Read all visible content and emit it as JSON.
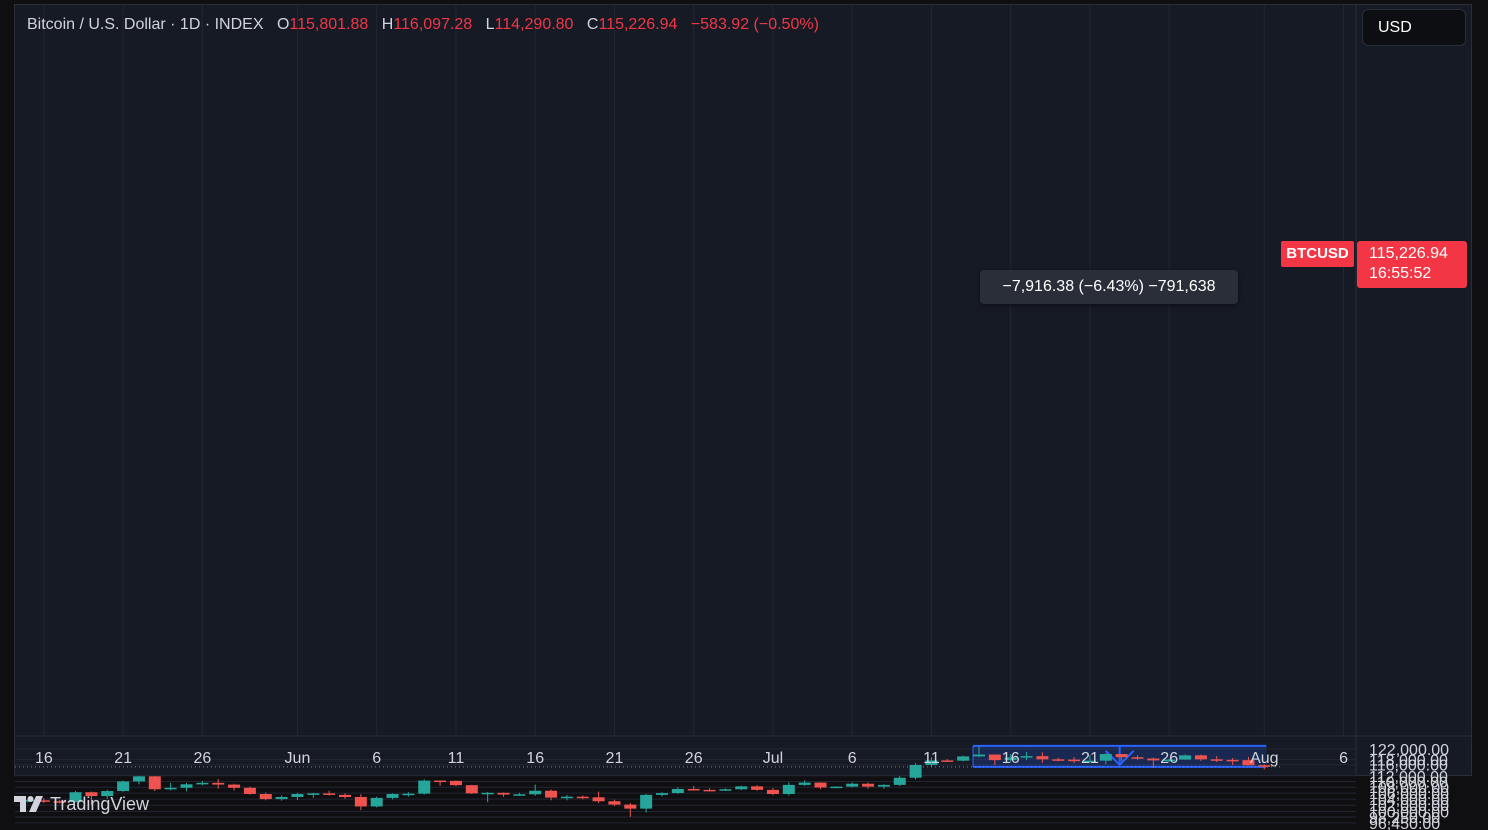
{
  "header": {
    "symbol": "Bitcoin / U.S. Dollar · 1D · INDEX",
    "open_label": "O",
    "open": "115,801.88",
    "high_label": "H",
    "high": "116,097.28",
    "low_label": "L",
    "low": "114,290.80",
    "close_label": "C",
    "close": "115,226.94",
    "change": "−583.92 (−0.50%)"
  },
  "currency_button": "USD",
  "price_tag": {
    "symbol": "BTCUSD",
    "price": "115,226.94",
    "countdown": "16:55:52"
  },
  "measure_tooltip": "−7,916.38 (−6.43%) −791,638",
  "brand": "TradingView",
  "colors": {
    "up": "#26a69a",
    "down": "#ef5350",
    "measure": "#2962ff",
    "background": "#161a25"
  },
  "chart_data": {
    "type": "candlestick",
    "title": "Bitcoin / U.S. Dollar · 1D · INDEX",
    "y_axis": {
      "log_scale": true,
      "ticks": [
        96450,
        98250,
        100000,
        102000,
        104000,
        106000,
        108000,
        110000,
        112000,
        116000,
        118000,
        122000
      ],
      "tick_labels": [
        "96,450.00",
        "98,250.00",
        "100,000.00",
        "102,000.00",
        "104,000.00",
        "106,000.00",
        "108,000.00",
        "110,000.00",
        "112,000.00",
        "116,000.00",
        "118,000.00",
        "122,000.00"
      ]
    },
    "x_axis": {
      "first_date": "2025-05-15",
      "tick_labels": [
        {
          "date": "2025-05-16",
          "label": "16"
        },
        {
          "date": "2025-05-21",
          "label": "21"
        },
        {
          "date": "2025-05-26",
          "label": "26"
        },
        {
          "date": "2025-06-01",
          "label": "Jun"
        },
        {
          "date": "2025-06-06",
          "label": "6"
        },
        {
          "date": "2025-06-11",
          "label": "11"
        },
        {
          "date": "2025-06-16",
          "label": "16"
        },
        {
          "date": "2025-06-21",
          "label": "21"
        },
        {
          "date": "2025-06-26",
          "label": "26"
        },
        {
          "date": "2025-07-01",
          "label": "Jul"
        },
        {
          "date": "2025-07-06",
          "label": "6"
        },
        {
          "date": "2025-07-11",
          "label": "11"
        },
        {
          "date": "2025-07-16",
          "label": "16"
        },
        {
          "date": "2025-07-21",
          "label": "21"
        },
        {
          "date": "2025-07-26",
          "label": "26"
        },
        {
          "date": "2025-08-01",
          "label": "Aug"
        },
        {
          "date": "2025-08-06",
          "label": "6"
        }
      ]
    },
    "candles": [
      {
        "date": "2025-05-15",
        "o": 103500,
        "h": 104100,
        "l": 102900,
        "c": 103700
      },
      {
        "date": "2025-05-16",
        "o": 103600,
        "h": 104300,
        "l": 102700,
        "c": 103300
      },
      {
        "date": "2025-05-17",
        "o": 103300,
        "h": 103700,
        "l": 102600,
        "c": 102900
      },
      {
        "date": "2025-05-18",
        "o": 103000,
        "h": 106700,
        "l": 102900,
        "c": 106300
      },
      {
        "date": "2025-05-19",
        "o": 106300,
        "h": 106500,
        "l": 102100,
        "c": 105000
      },
      {
        "date": "2025-05-20",
        "o": 105000,
        "h": 107100,
        "l": 104100,
        "c": 106700
      },
      {
        "date": "2025-05-21",
        "o": 106700,
        "h": 110300,
        "l": 106400,
        "c": 110000
      },
      {
        "date": "2025-05-22",
        "o": 110000,
        "h": 112000,
        "l": 109000,
        "c": 111800
      },
      {
        "date": "2025-05-23",
        "o": 111800,
        "h": 111900,
        "l": 106700,
        "c": 107300
      },
      {
        "date": "2025-05-24",
        "o": 107300,
        "h": 109500,
        "l": 106900,
        "c": 107800
      },
      {
        "date": "2025-05-25",
        "o": 107800,
        "h": 109500,
        "l": 106600,
        "c": 109000
      },
      {
        "date": "2025-05-26",
        "o": 109000,
        "h": 110200,
        "l": 108600,
        "c": 109500
      },
      {
        "date": "2025-05-27",
        "o": 109500,
        "h": 110800,
        "l": 107500,
        "c": 108900
      },
      {
        "date": "2025-05-28",
        "o": 108900,
        "h": 109200,
        "l": 106900,
        "c": 107800
      },
      {
        "date": "2025-05-29",
        "o": 107800,
        "h": 108200,
        "l": 105500,
        "c": 105700
      },
      {
        "date": "2025-05-30",
        "o": 105700,
        "h": 106200,
        "l": 103600,
        "c": 104000
      },
      {
        "date": "2025-05-31",
        "o": 104000,
        "h": 105200,
        "l": 103500,
        "c": 104700
      },
      {
        "date": "2025-06-01",
        "o": 104700,
        "h": 106100,
        "l": 103700,
        "c": 105700
      },
      {
        "date": "2025-06-02",
        "o": 105700,
        "h": 106100,
        "l": 104400,
        "c": 105900
      },
      {
        "date": "2025-06-03",
        "o": 105900,
        "h": 106800,
        "l": 105200,
        "c": 105400
      },
      {
        "date": "2025-06-04",
        "o": 105400,
        "h": 105900,
        "l": 104100,
        "c": 104700
      },
      {
        "date": "2025-06-05",
        "o": 104700,
        "h": 105600,
        "l": 100400,
        "c": 101600
      },
      {
        "date": "2025-06-06",
        "o": 101600,
        "h": 104800,
        "l": 101300,
        "c": 104400
      },
      {
        "date": "2025-06-07",
        "o": 104400,
        "h": 105900,
        "l": 103900,
        "c": 105700
      },
      {
        "date": "2025-06-08",
        "o": 105700,
        "h": 106300,
        "l": 104800,
        "c": 105800
      },
      {
        "date": "2025-06-09",
        "o": 105800,
        "h": 110700,
        "l": 105500,
        "c": 110300
      },
      {
        "date": "2025-06-10",
        "o": 110300,
        "h": 110300,
        "l": 108500,
        "c": 110200
      },
      {
        "date": "2025-06-11",
        "o": 110200,
        "h": 110400,
        "l": 108400,
        "c": 108700
      },
      {
        "date": "2025-06-12",
        "o": 108700,
        "h": 108800,
        "l": 105700,
        "c": 105900
      },
      {
        "date": "2025-06-13",
        "o": 105900,
        "h": 106400,
        "l": 103000,
        "c": 106100
      },
      {
        "date": "2025-06-14",
        "o": 106100,
        "h": 106200,
        "l": 104800,
        "c": 105500
      },
      {
        "date": "2025-06-15",
        "o": 105500,
        "h": 106100,
        "l": 105100,
        "c": 105600
      },
      {
        "date": "2025-06-16",
        "o": 105600,
        "h": 108900,
        "l": 105100,
        "c": 106800
      },
      {
        "date": "2025-06-17",
        "o": 106800,
        "h": 107200,
        "l": 103600,
        "c": 104500
      },
      {
        "date": "2025-06-18",
        "o": 104500,
        "h": 105400,
        "l": 103600,
        "c": 104800
      },
      {
        "date": "2025-06-19",
        "o": 104800,
        "h": 105200,
        "l": 103900,
        "c": 104600
      },
      {
        "date": "2025-06-20",
        "o": 104600,
        "h": 106500,
        "l": 102700,
        "c": 103300
      },
      {
        "date": "2025-06-21",
        "o": 103300,
        "h": 103800,
        "l": 101700,
        "c": 102200
      },
      {
        "date": "2025-06-22",
        "o": 102200,
        "h": 102700,
        "l": 98300,
        "c": 100900
      },
      {
        "date": "2025-06-23",
        "o": 100900,
        "h": 105700,
        "l": 99700,
        "c": 105400
      },
      {
        "date": "2025-06-24",
        "o": 105400,
        "h": 106300,
        "l": 104900,
        "c": 106000
      },
      {
        "date": "2025-06-25",
        "o": 106000,
        "h": 108000,
        "l": 105800,
        "c": 107400
      },
      {
        "date": "2025-06-26",
        "o": 107400,
        "h": 108400,
        "l": 106800,
        "c": 107100
      },
      {
        "date": "2025-06-27",
        "o": 107100,
        "h": 107600,
        "l": 106500,
        "c": 107000
      },
      {
        "date": "2025-06-28",
        "o": 107000,
        "h": 107600,
        "l": 106700,
        "c": 107300
      },
      {
        "date": "2025-06-29",
        "o": 107300,
        "h": 108500,
        "l": 107000,
        "c": 108300
      },
      {
        "date": "2025-06-30",
        "o": 108300,
        "h": 108700,
        "l": 106800,
        "c": 107100
      },
      {
        "date": "2025-07-01",
        "o": 107100,
        "h": 107700,
        "l": 105300,
        "c": 105700
      },
      {
        "date": "2025-07-02",
        "o": 105700,
        "h": 109700,
        "l": 105200,
        "c": 108800
      },
      {
        "date": "2025-07-03",
        "o": 108800,
        "h": 110400,
        "l": 108500,
        "c": 109600
      },
      {
        "date": "2025-07-04",
        "o": 109600,
        "h": 109700,
        "l": 107300,
        "c": 107900
      },
      {
        "date": "2025-07-05",
        "o": 107900,
        "h": 108300,
        "l": 107700,
        "c": 108200
      },
      {
        "date": "2025-07-06",
        "o": 108200,
        "h": 109700,
        "l": 107900,
        "c": 109200
      },
      {
        "date": "2025-07-07",
        "o": 109200,
        "h": 109600,
        "l": 107500,
        "c": 108200
      },
      {
        "date": "2025-07-08",
        "o": 108200,
        "h": 109000,
        "l": 107500,
        "c": 108800
      },
      {
        "date": "2025-07-09",
        "o": 108800,
        "h": 111900,
        "l": 108400,
        "c": 111300
      },
      {
        "date": "2025-07-10",
        "o": 111300,
        "h": 116600,
        "l": 110700,
        "c": 115900
      },
      {
        "date": "2025-07-11",
        "o": 115900,
        "h": 118800,
        "l": 115200,
        "c": 117600
      },
      {
        "date": "2025-07-12",
        "o": 117600,
        "h": 118100,
        "l": 117100,
        "c": 117500
      },
      {
        "date": "2025-07-13",
        "o": 117500,
        "h": 119400,
        "l": 117300,
        "c": 119100
      },
      {
        "date": "2025-07-14",
        "o": 119100,
        "h": 123000,
        "l": 118800,
        "c": 119800
      },
      {
        "date": "2025-07-15",
        "o": 119800,
        "h": 119900,
        "l": 115900,
        "c": 117700
      },
      {
        "date": "2025-07-16",
        "o": 117700,
        "h": 120000,
        "l": 116900,
        "c": 118700
      },
      {
        "date": "2025-07-17",
        "o": 118700,
        "h": 120800,
        "l": 117700,
        "c": 119200
      },
      {
        "date": "2025-07-18",
        "o": 119200,
        "h": 120700,
        "l": 116700,
        "c": 118000
      },
      {
        "date": "2025-07-19",
        "o": 118000,
        "h": 118600,
        "l": 117300,
        "c": 117900
      },
      {
        "date": "2025-07-20",
        "o": 117900,
        "h": 118900,
        "l": 116600,
        "c": 117300
      },
      {
        "date": "2025-07-21",
        "o": 117300,
        "h": 119600,
        "l": 116600,
        "c": 117500
      },
      {
        "date": "2025-07-22",
        "o": 117500,
        "h": 120300,
        "l": 116200,
        "c": 120000
      },
      {
        "date": "2025-07-23",
        "o": 120000,
        "h": 120000,
        "l": 117400,
        "c": 118800
      },
      {
        "date": "2025-07-24",
        "o": 118800,
        "h": 119500,
        "l": 117800,
        "c": 118300
      },
      {
        "date": "2025-07-25",
        "o": 118300,
        "h": 118600,
        "l": 114800,
        "c": 117600
      },
      {
        "date": "2025-07-26",
        "o": 117600,
        "h": 118300,
        "l": 117000,
        "c": 117900
      },
      {
        "date": "2025-07-27",
        "o": 117900,
        "h": 119800,
        "l": 117800,
        "c": 119500
      },
      {
        "date": "2025-07-28",
        "o": 119500,
        "h": 119800,
        "l": 117400,
        "c": 118000
      },
      {
        "date": "2025-07-29",
        "o": 118000,
        "h": 119300,
        "l": 117000,
        "c": 117800
      },
      {
        "date": "2025-07-30",
        "o": 117800,
        "h": 118500,
        "l": 115900,
        "c": 117700
      },
      {
        "date": "2025-07-31",
        "o": 117700,
        "h": 118900,
        "l": 115700,
        "c": 115800
      },
      {
        "date": "2025-08-01",
        "o": 115800,
        "h": 116100,
        "l": 114300,
        "c": 115227
      }
    ],
    "measure": {
      "from_date": "2025-07-14",
      "to_date": "2025-08-01",
      "high": 123143,
      "low": 115227,
      "price_change": -7916.38,
      "percent_change": -6.43,
      "volume": -791638
    },
    "last_price": 115226.94
  }
}
